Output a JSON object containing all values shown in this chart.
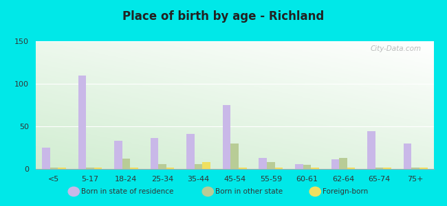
{
  "title": "Place of birth by age - Richland",
  "categories": [
    "<5",
    "5-17",
    "18-24",
    "25-34",
    "35-44",
    "45-54",
    "55-59",
    "60-61",
    "62-64",
    "65-74",
    "75+"
  ],
  "born_in_state": [
    25,
    110,
    33,
    36,
    41,
    75,
    13,
    6,
    11,
    44,
    30
  ],
  "born_other_state": [
    2,
    2,
    12,
    6,
    6,
    30,
    8,
    5,
    13,
    2,
    2
  ],
  "foreign_born": [
    2,
    2,
    2,
    2,
    8,
    2,
    2,
    2,
    2,
    2,
    2
  ],
  "color_state": "#c9b8e8",
  "color_other": "#b8cc96",
  "color_foreign": "#efe060",
  "outer_bg": "#00e8e8",
  "ylim": [
    0,
    150
  ],
  "yticks": [
    0,
    50,
    100,
    150
  ],
  "watermark": "City-Data.com",
  "bar_width": 0.22
}
